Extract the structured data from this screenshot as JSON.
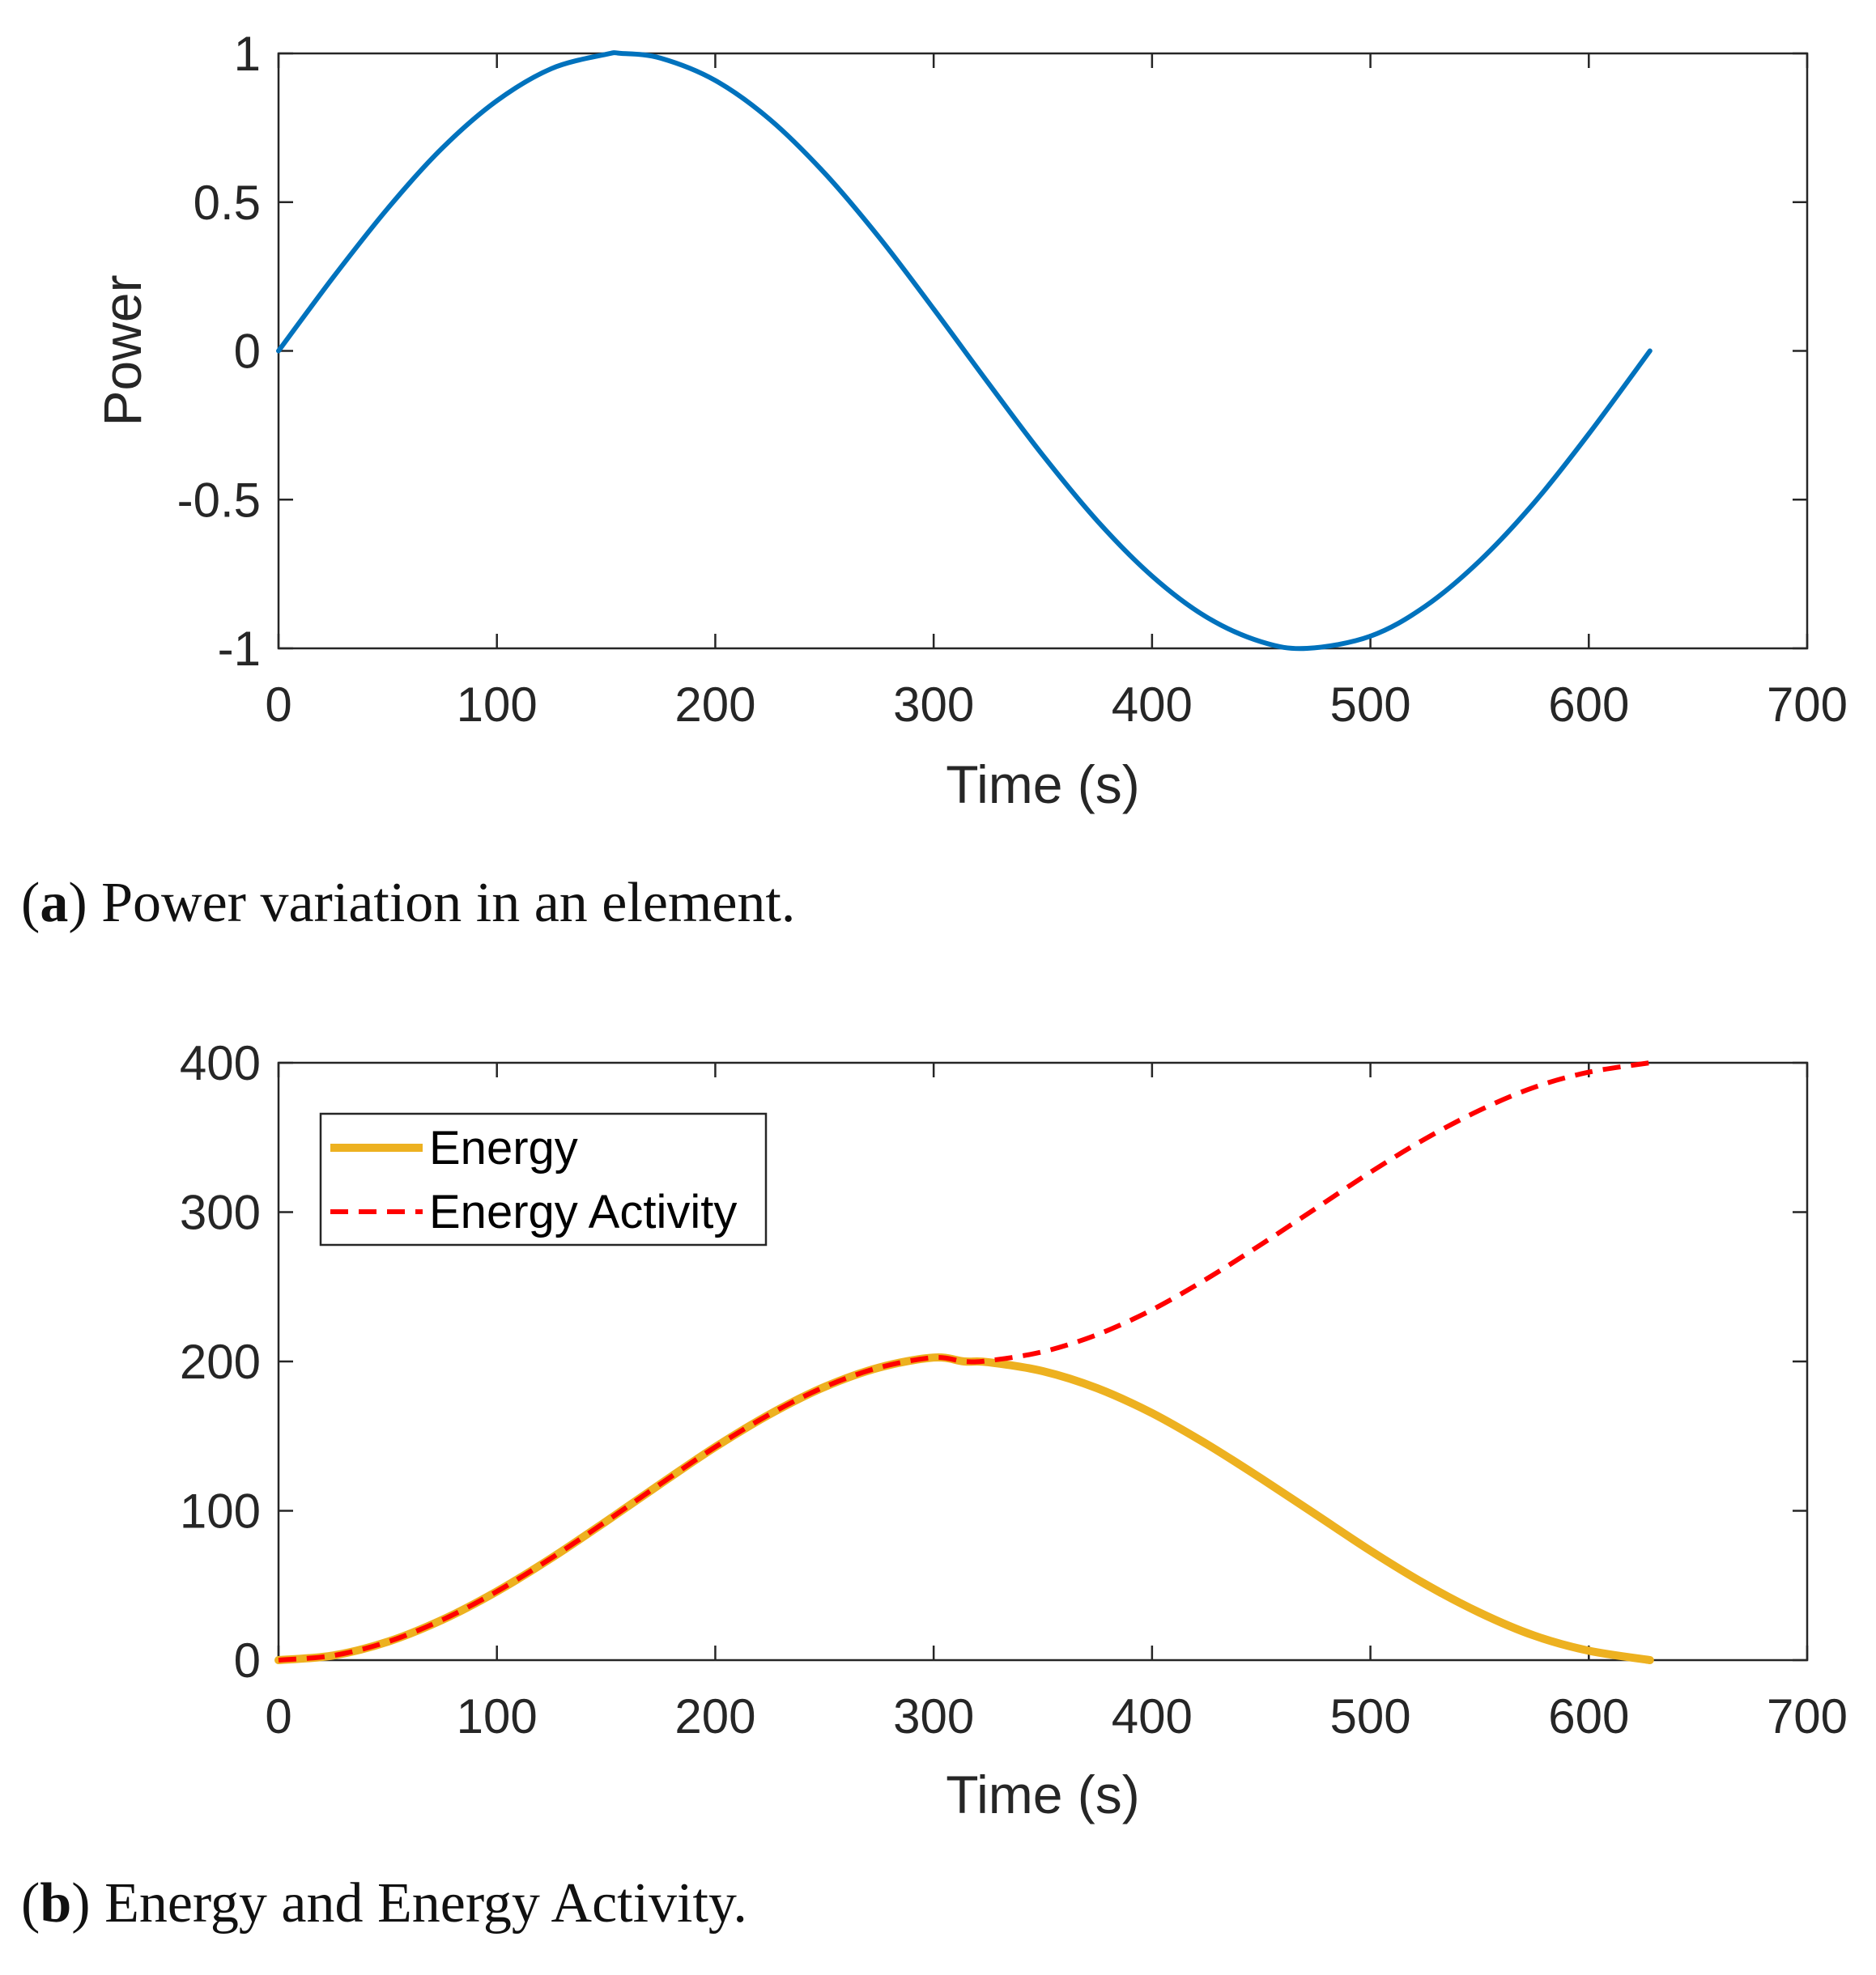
{
  "chart_data": [
    {
      "id": "a",
      "type": "line",
      "xlabel": "Time (s)",
      "ylabel": "Power",
      "xlim": [
        0,
        700
      ],
      "ylim": [
        -1,
        1
      ],
      "xticks": [
        0,
        100,
        200,
        300,
        400,
        500,
        600,
        700
      ],
      "xtick_labels": [
        "0",
        "100",
        "200",
        "300",
        "400",
        "500",
        "600",
        "700"
      ],
      "yticks": [
        -1,
        -0.5,
        0,
        0.5,
        1
      ],
      "ytick_labels": [
        "-1",
        "-0.5",
        "0",
        "0.5",
        "1"
      ],
      "grid": false,
      "series": [
        {
          "name": "Power",
          "color": "#0072BD",
          "style": "solid",
          "x": [
            0,
            25,
            50,
            75,
            100,
            125,
            150,
            157,
            175,
            200,
            225,
            250,
            275,
            300,
            325,
            350,
            375,
            400,
            425,
            450,
            471,
            500,
            525,
            550,
            575,
            600,
            628
          ],
          "y": [
            0,
            0.247,
            0.479,
            0.682,
            0.841,
            0.949,
            0.997,
            1.0,
            0.984,
            0.909,
            0.778,
            0.598,
            0.382,
            0.141,
            -0.108,
            -0.351,
            -0.572,
            -0.757,
            -0.895,
            -0.978,
            -1.0,
            -0.959,
            -0.859,
            -0.706,
            -0.51,
            -0.279,
            0
          ]
        }
      ],
      "caption_label": "a",
      "caption_text": "Power variation in an element."
    },
    {
      "id": "b",
      "type": "line",
      "xlabel": "Time (s)",
      "ylabel": "",
      "xlim": [
        0,
        700
      ],
      "ylim": [
        0,
        400
      ],
      "xticks": [
        0,
        100,
        200,
        300,
        400,
        500,
        600,
        700
      ],
      "xtick_labels": [
        "0",
        "100",
        "200",
        "300",
        "400",
        "500",
        "600",
        "700"
      ],
      "yticks": [
        0,
        100,
        200,
        300,
        400
      ],
      "ytick_labels": [
        "0",
        "100",
        "200",
        "300",
        "400"
      ],
      "grid": false,
      "legend_position": "top-left",
      "series": [
        {
          "name": "Energy",
          "color": "#EDB120",
          "style": "solid",
          "x": [
            0,
            25,
            50,
            75,
            100,
            125,
            150,
            175,
            200,
            225,
            250,
            275,
            300,
            314,
            325,
            350,
            375,
            400,
            425,
            450,
            475,
            500,
            525,
            550,
            575,
            600,
            628
          ],
          "y": [
            0,
            3.1,
            12.3,
            27.0,
            46.0,
            68.4,
            92.9,
            118.1,
            142.7,
            164.7,
            182.9,
            195.9,
            202.6,
            200.0,
            199.5,
            193.5,
            182.0,
            165.4,
            144.7,
            121.6,
            97.5,
            73.3,
            51.0,
            31.8,
            16.4,
            6.3,
            0
          ]
        },
        {
          "name": "Energy Activity",
          "color": "#FF0000",
          "style": "dashed",
          "x": [
            0,
            25,
            50,
            75,
            100,
            125,
            150,
            175,
            200,
            225,
            250,
            275,
            300,
            314,
            325,
            350,
            375,
            400,
            425,
            450,
            475,
            500,
            525,
            550,
            575,
            600,
            628
          ],
          "y": [
            0,
            3.1,
            12.3,
            27.0,
            46.0,
            68.4,
            92.9,
            118.1,
            142.7,
            164.7,
            182.9,
            195.9,
            202.6,
            200.0,
            200.5,
            206.5,
            218.0,
            234.6,
            255.3,
            278.4,
            302.5,
            326.7,
            349.0,
            368.2,
            383.6,
            393.7,
            400
          ]
        }
      ],
      "caption_label": "b",
      "caption_text": "Energy and Energy Activity."
    }
  ]
}
